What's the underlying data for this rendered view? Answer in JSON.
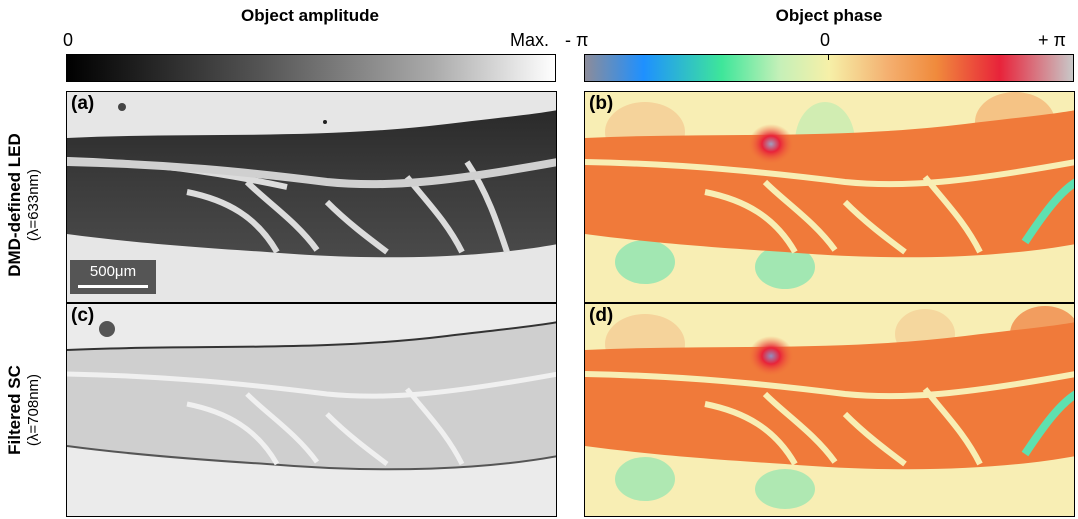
{
  "amplitude": {
    "title": "Object amplitude",
    "tick_min": "0",
    "tick_max": "Max."
  },
  "phase": {
    "title": "Object phase",
    "tick_min": "- π",
    "tick_mid": "0",
    "tick_max": "+ π"
  },
  "rows": [
    {
      "label": "DMD-defined LED",
      "sublabel": "(λ=633nm)"
    },
    {
      "label": "Filtered SC",
      "sublabel": "(λ=708nm)"
    }
  ],
  "panels": {
    "a": "(a)",
    "b": "(b)",
    "c": "(c)",
    "d": "(d)"
  },
  "scalebar": {
    "label": "500μm"
  },
  "colors": {
    "phase_colormap": [
      "#8c8c9a",
      "#1e90ff",
      "#3ee69a",
      "#f6f0a8",
      "#f08a3c",
      "#e8233a",
      "#c8c8c8"
    ],
    "amplitude_colormap": [
      "#000000",
      "#ffffff"
    ]
  }
}
